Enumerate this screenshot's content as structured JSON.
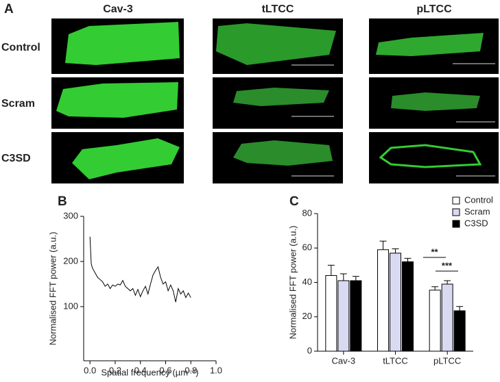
{
  "figure": {
    "panel": "A",
    "columns": [
      "Cav-3",
      "tLTCC",
      "pLTCC"
    ],
    "rows": [
      "Control",
      "Scram",
      "C3SD"
    ]
  },
  "chart_data": [
    {
      "type": "line",
      "panel": "B",
      "x_label": "Spatial frequency (µm⁻¹)",
      "y_label": "Normalised FFT power (a.u.)",
      "x": [
        0,
        0.01,
        0.02,
        0.04,
        0.06,
        0.08,
        0.1,
        0.12,
        0.14,
        0.16,
        0.18,
        0.2,
        0.22,
        0.24,
        0.26,
        0.28,
        0.3,
        0.32,
        0.34,
        0.36,
        0.38,
        0.4,
        0.42,
        0.44,
        0.46,
        0.48,
        0.5,
        0.52,
        0.54,
        0.56,
        0.58,
        0.6,
        0.62,
        0.64,
        0.66,
        0.68,
        0.7,
        0.72,
        0.74,
        0.76,
        0.78,
        0.8
      ],
      "series": [
        {
          "color": "#000000",
          "values": [
            255,
            195,
            185,
            175,
            165,
            160,
            155,
            145,
            150,
            140,
            148,
            145,
            150,
            148,
            158,
            145,
            140,
            135,
            140,
            125,
            138,
            122,
            135,
            145,
            128,
            150,
            170,
            180,
            188,
            165,
            150,
            155,
            135,
            148,
            135,
            110,
            140,
            128,
            135,
            120,
            130,
            120
          ]
        }
      ],
      "xlim": [
        -0.05,
        1.0
      ],
      "xticks": [
        {
          "value": 0,
          "label": "0.0"
        },
        0.2,
        0.4,
        0.6,
        0.8,
        {
          "value": 1,
          "label": "1.0"
        }
      ],
      "ylim": [
        -20,
        300
      ],
      "yticks": [
        100,
        200,
        300
      ]
    },
    {
      "type": "bar",
      "panel": "C",
      "y_label": "Normalised FFT power (a.u.)",
      "categories": [
        "Cav-3",
        "tLTCC",
        "pLTCC"
      ],
      "series": [
        {
          "name": "Control",
          "color": "#ffffff",
          "values": [
            44,
            59,
            35.5
          ],
          "errors": [
            6,
            5,
            2
          ]
        },
        {
          "name": "Scram",
          "color": "#d9d9f2",
          "values": [
            41,
            57,
            39
          ],
          "errors": [
            4,
            2.5,
            2
          ]
        },
        {
          "name": "C3SD",
          "color": "#000000",
          "values": [
            41,
            52,
            23.5
          ],
          "errors": [
            2.5,
            2,
            2.5
          ]
        }
      ],
      "ylim": [
        0,
        80
      ],
      "yticks": [
        0,
        20,
        40,
        60,
        80
      ],
      "annotations": [
        "**",
        "***"
      ]
    }
  ]
}
